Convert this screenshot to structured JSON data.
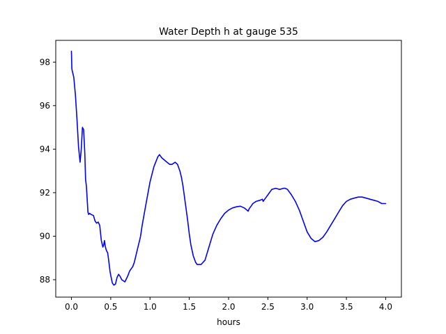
{
  "chart_data": {
    "type": "line",
    "title": "Water Depth h at gauge 535",
    "xlabel": "hours",
    "ylabel": "",
    "xlim": [
      -0.2,
      4.2
    ],
    "ylim": [
      87.2,
      99.0
    ],
    "xticks": [
      0.0,
      0.5,
      1.0,
      1.5,
      2.0,
      2.5,
      3.0,
      3.5,
      4.0
    ],
    "xtick_labels": [
      "0.0",
      "0.5",
      "1.0",
      "1.5",
      "2.0",
      "2.5",
      "3.0",
      "3.5",
      "4.0"
    ],
    "yticks": [
      88,
      90,
      92,
      94,
      96,
      98
    ],
    "ytick_labels": [
      "88",
      "90",
      "92",
      "94",
      "96",
      "98"
    ],
    "grid": false,
    "series": [
      {
        "color": "#0000ff",
        "x": [
          0.0,
          0.005,
          0.01,
          0.03,
          0.05,
          0.07,
          0.09,
          0.11,
          0.125,
          0.14,
          0.155,
          0.17,
          0.18,
          0.19,
          0.2,
          0.21,
          0.22,
          0.23,
          0.25,
          0.28,
          0.3,
          0.32,
          0.34,
          0.36,
          0.38,
          0.4,
          0.41,
          0.42,
          0.43,
          0.44,
          0.45,
          0.46,
          0.47,
          0.48,
          0.49,
          0.5,
          0.52,
          0.54,
          0.56,
          0.58,
          0.6,
          0.62,
          0.64,
          0.66,
          0.68,
          0.7,
          0.72,
          0.74,
          0.76,
          0.78,
          0.8,
          0.82,
          0.84,
          0.86,
          0.88,
          0.9,
          0.95,
          1.0,
          1.05,
          1.1,
          1.12,
          1.15,
          1.2,
          1.25,
          1.28,
          1.3,
          1.32,
          1.35,
          1.38,
          1.4,
          1.42,
          1.45,
          1.48,
          1.5,
          1.52,
          1.55,
          1.58,
          1.6,
          1.65,
          1.7,
          1.75,
          1.8,
          1.85,
          1.9,
          1.95,
          2.0,
          2.05,
          2.1,
          2.15,
          2.2,
          2.25,
          2.26,
          2.27,
          2.28,
          2.29,
          2.3,
          2.31,
          2.35,
          2.4,
          2.43,
          2.44,
          2.45,
          2.47,
          2.5,
          2.55,
          2.6,
          2.65,
          2.7,
          2.72,
          2.75,
          2.8,
          2.85,
          2.9,
          2.95,
          3.0,
          3.05,
          3.1,
          3.15,
          3.2,
          3.25,
          3.3,
          3.35,
          3.4,
          3.45,
          3.5,
          3.55,
          3.6,
          3.65,
          3.7,
          3.75,
          3.8,
          3.85,
          3.9,
          3.95,
          4.0
        ],
        "y": [
          98.5,
          97.7,
          97.6,
          97.3,
          96.5,
          95.4,
          94.1,
          93.4,
          94.0,
          95.0,
          94.9,
          93.8,
          92.6,
          92.3,
          91.7,
          91.1,
          91.0,
          91.05,
          91.0,
          90.95,
          90.7,
          90.6,
          90.65,
          90.5,
          89.8,
          89.5,
          89.6,
          89.8,
          89.55,
          89.4,
          89.3,
          89.25,
          89.0,
          88.7,
          88.4,
          88.2,
          87.85,
          87.75,
          87.8,
          88.1,
          88.25,
          88.15,
          88.0,
          87.95,
          87.9,
          88.05,
          88.2,
          88.4,
          88.5,
          88.6,
          88.8,
          89.1,
          89.4,
          89.7,
          90.0,
          90.5,
          91.5,
          92.5,
          93.2,
          93.65,
          93.75,
          93.6,
          93.45,
          93.3,
          93.3,
          93.35,
          93.4,
          93.3,
          93.0,
          92.7,
          92.3,
          91.5,
          90.7,
          90.1,
          89.6,
          89.1,
          88.8,
          88.7,
          88.7,
          88.9,
          89.5,
          90.1,
          90.5,
          90.8,
          91.05,
          91.2,
          91.3,
          91.35,
          91.38,
          91.3,
          91.15,
          91.25,
          91.3,
          91.35,
          91.4,
          91.45,
          91.5,
          91.6,
          91.65,
          91.7,
          91.6,
          91.65,
          91.75,
          91.9,
          92.15,
          92.2,
          92.15,
          92.2,
          92.2,
          92.15,
          91.9,
          91.6,
          91.2,
          90.7,
          90.2,
          89.9,
          89.75,
          89.8,
          89.95,
          90.2,
          90.5,
          90.8,
          91.1,
          91.4,
          91.6,
          91.7,
          91.75,
          91.8,
          91.8,
          91.75,
          91.7,
          91.65,
          91.6,
          91.5,
          91.5
        ]
      }
    ]
  }
}
